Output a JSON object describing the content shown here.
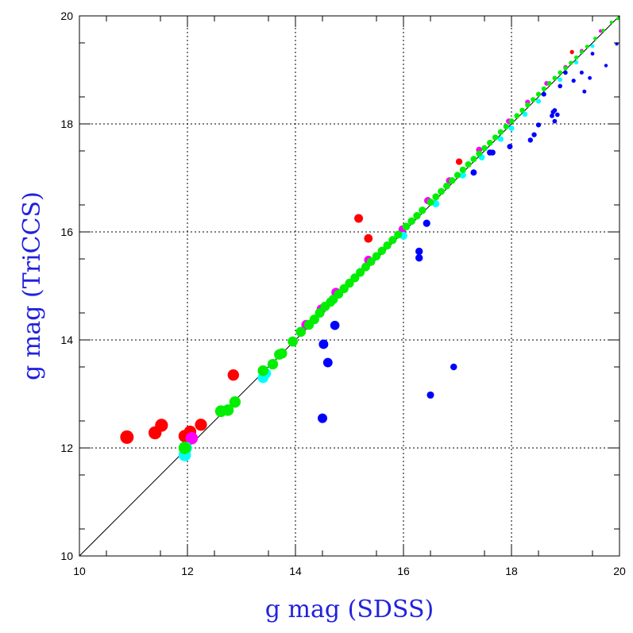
{
  "chart_data": {
    "type": "scatter",
    "xlabel": "g mag (SDSS)",
    "ylabel": "g mag (TriCCS)",
    "xlim": [
      10,
      20
    ],
    "ylim": [
      10,
      20
    ],
    "xticks": [
      "10",
      "12",
      "14",
      "16",
      "18",
      "20"
    ],
    "yticks": [
      "10",
      "12",
      "14",
      "16",
      "18",
      "20"
    ],
    "grid": true,
    "reference_line": "y = x",
    "series": [
      {
        "color": "#ff0000",
        "points": [
          [
            10.88,
            12.2
          ],
          [
            11.4,
            12.28
          ],
          [
            11.52,
            12.42
          ],
          [
            11.95,
            12.22
          ],
          [
            12.05,
            12.3
          ],
          [
            12.25,
            12.43
          ],
          [
            12.85,
            13.35
          ],
          [
            15.17,
            16.25
          ],
          [
            15.35,
            15.88
          ],
          [
            17.03,
            17.3
          ],
          [
            19.12,
            19.33
          ]
        ]
      },
      {
        "color": "#ff00ff",
        "points": [
          [
            12.08,
            12.18
          ],
          [
            14.2,
            14.28
          ],
          [
            14.48,
            14.57
          ],
          [
            14.75,
            14.88
          ],
          [
            15.35,
            15.48
          ],
          [
            15.98,
            16.05
          ],
          [
            16.45,
            16.58
          ],
          [
            16.85,
            16.95
          ],
          [
            17.4,
            17.52
          ],
          [
            17.95,
            18.05
          ],
          [
            18.3,
            18.4
          ],
          [
            18.65,
            18.75
          ],
          [
            19.0,
            19.05
          ],
          [
            19.3,
            19.35
          ],
          [
            19.65,
            19.72
          ]
        ]
      },
      {
        "color": "#0000ff",
        "points": [
          [
            14.5,
            12.55
          ],
          [
            14.52,
            13.92
          ],
          [
            14.6,
            13.58
          ],
          [
            14.73,
            14.27
          ],
          [
            16.5,
            12.98
          ],
          [
            16.93,
            13.5
          ],
          [
            16.29,
            15.52
          ],
          [
            16.29,
            15.64
          ],
          [
            16.43,
            16.16
          ],
          [
            17.3,
            17.1
          ],
          [
            17.6,
            17.47
          ],
          [
            17.65,
            17.47
          ],
          [
            17.97,
            17.58
          ],
          [
            18.35,
            17.7
          ],
          [
            18.42,
            17.8
          ],
          [
            18.5,
            17.98
          ],
          [
            18.6,
            18.55
          ],
          [
            18.75,
            18.15
          ],
          [
            18.77,
            18.22
          ],
          [
            18.8,
            18.25
          ],
          [
            18.85,
            18.17
          ],
          [
            18.8,
            18.05
          ],
          [
            18.9,
            18.7
          ],
          [
            19.0,
            18.95
          ],
          [
            19.15,
            18.8
          ],
          [
            19.3,
            18.95
          ],
          [
            19.35,
            18.6
          ],
          [
            19.45,
            18.85
          ],
          [
            19.5,
            19.3
          ],
          [
            19.75,
            19.08
          ],
          [
            19.95,
            19.48
          ]
        ]
      },
      {
        "color": "#00ffff",
        "points": [
          [
            11.95,
            11.87
          ],
          [
            11.97,
            12.0
          ],
          [
            13.4,
            13.3
          ],
          [
            13.45,
            13.38
          ],
          [
            16.0,
            15.93
          ],
          [
            16.6,
            16.52
          ],
          [
            17.1,
            17.05
          ],
          [
            17.45,
            17.38
          ],
          [
            17.8,
            17.72
          ],
          [
            18.0,
            17.92
          ],
          [
            18.25,
            18.18
          ],
          [
            18.5,
            18.42
          ],
          [
            18.9,
            18.82
          ],
          [
            19.2,
            19.14
          ],
          [
            19.5,
            19.44
          ]
        ]
      },
      {
        "color": "#00ee00",
        "points": [
          [
            11.95,
            12.0
          ],
          [
            12.62,
            12.68
          ],
          [
            12.75,
            12.7
          ],
          [
            12.88,
            12.85
          ],
          [
            13.4,
            13.43
          ],
          [
            13.58,
            13.55
          ],
          [
            13.7,
            13.73
          ],
          [
            13.75,
            13.75
          ],
          [
            13.95,
            13.97
          ],
          [
            14.1,
            14.15
          ],
          [
            14.25,
            14.28
          ],
          [
            14.35,
            14.38
          ],
          [
            14.45,
            14.5
          ],
          [
            14.55,
            14.62
          ],
          [
            14.65,
            14.7
          ],
          [
            14.7,
            14.75
          ],
          [
            14.8,
            14.85
          ],
          [
            14.9,
            14.95
          ],
          [
            15.0,
            15.05
          ],
          [
            15.1,
            15.15
          ],
          [
            15.2,
            15.25
          ],
          [
            15.3,
            15.35
          ],
          [
            15.4,
            15.45
          ],
          [
            15.5,
            15.55
          ],
          [
            15.6,
            15.65
          ],
          [
            15.7,
            15.75
          ],
          [
            15.8,
            15.85
          ],
          [
            15.9,
            15.95
          ],
          [
            16.05,
            16.1
          ],
          [
            16.15,
            16.2
          ],
          [
            16.25,
            16.3
          ],
          [
            16.35,
            16.4
          ],
          [
            16.5,
            16.55
          ],
          [
            16.6,
            16.65
          ],
          [
            16.7,
            16.75
          ],
          [
            16.8,
            16.85
          ],
          [
            16.9,
            16.95
          ],
          [
            17.0,
            17.05
          ],
          [
            17.1,
            17.15
          ],
          [
            17.2,
            17.25
          ],
          [
            17.3,
            17.35
          ],
          [
            17.4,
            17.45
          ],
          [
            17.5,
            17.55
          ],
          [
            17.6,
            17.65
          ],
          [
            17.7,
            17.75
          ],
          [
            17.8,
            17.85
          ],
          [
            17.9,
            17.95
          ],
          [
            18.0,
            18.05
          ],
          [
            18.1,
            18.15
          ],
          [
            18.2,
            18.25
          ],
          [
            18.3,
            18.35
          ],
          [
            18.4,
            18.45
          ],
          [
            18.5,
            18.55
          ],
          [
            18.6,
            18.65
          ],
          [
            18.7,
            18.75
          ],
          [
            18.8,
            18.85
          ],
          [
            18.9,
            18.95
          ],
          [
            19.0,
            19.03
          ],
          [
            19.1,
            19.13
          ],
          [
            19.2,
            19.23
          ],
          [
            19.3,
            19.33
          ],
          [
            19.4,
            19.43
          ],
          [
            19.55,
            19.58
          ],
          [
            19.7,
            19.73
          ],
          [
            19.85,
            19.88
          ],
          [
            19.97,
            19.95
          ]
        ]
      }
    ]
  }
}
